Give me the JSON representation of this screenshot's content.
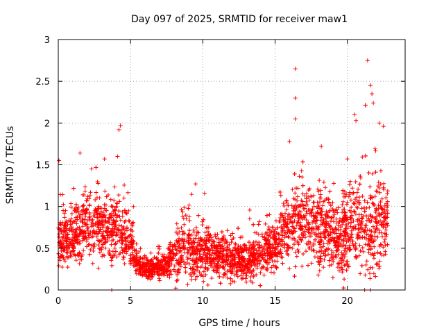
{
  "chart_data": {
    "type": "scatter",
    "title": "Day 097 of 2025, SRMTID for receiver maw1",
    "xlabel": "GPS time / hours",
    "ylabel": "SRMTID / TECUs",
    "xlim": [
      0,
      24
    ],
    "ylim": [
      0,
      3
    ],
    "xticks": [
      0,
      5,
      10,
      15,
      20
    ],
    "yticks": [
      0,
      0.5,
      1,
      1.5,
      2,
      2.5,
      3
    ],
    "xtick_labels": [
      "0",
      "5",
      "10",
      "15",
      "20"
    ],
    "ytick_labels": [
      "0",
      "0.5",
      "1",
      "1.5",
      "2",
      "2.5",
      "3"
    ],
    "grid": true,
    "marker": "+",
    "color": "#ff0000",
    "n_points": 3600,
    "profile": [
      {
        "hour": 0.0,
        "mean": 0.6,
        "spread": 0.25
      },
      {
        "hour": 1.0,
        "mean": 0.65,
        "spread": 0.3
      },
      {
        "hour": 2.0,
        "mean": 0.8,
        "spread": 0.3
      },
      {
        "hour": 3.0,
        "mean": 0.75,
        "spread": 0.3
      },
      {
        "hour": 4.0,
        "mean": 0.75,
        "spread": 0.35
      },
      {
        "hour": 5.0,
        "mean": 0.6,
        "spread": 0.25
      },
      {
        "hour": 5.5,
        "mean": 0.3,
        "spread": 0.1
      },
      {
        "hour": 6.5,
        "mean": 0.25,
        "spread": 0.1
      },
      {
        "hour": 7.5,
        "mean": 0.3,
        "spread": 0.12
      },
      {
        "hour": 8.5,
        "mean": 0.5,
        "spread": 0.3
      },
      {
        "hour": 9.5,
        "mean": 0.45,
        "spread": 0.3
      },
      {
        "hour": 10.5,
        "mean": 0.45,
        "spread": 0.25
      },
      {
        "hour": 12.0,
        "mean": 0.35,
        "spread": 0.2
      },
      {
        "hour": 13.5,
        "mean": 0.4,
        "spread": 0.2
      },
      {
        "hour": 15.0,
        "mean": 0.55,
        "spread": 0.25
      },
      {
        "hour": 16.5,
        "mean": 0.8,
        "spread": 0.4
      },
      {
        "hour": 18.0,
        "mean": 0.8,
        "spread": 0.4
      },
      {
        "hour": 19.5,
        "mean": 0.55,
        "spread": 0.35
      },
      {
        "hour": 20.5,
        "mean": 0.9,
        "spread": 0.5
      },
      {
        "hour": 21.5,
        "mean": 0.7,
        "spread": 0.55
      },
      {
        "hour": 22.5,
        "mean": 0.8,
        "spread": 0.45
      },
      {
        "hour": 22.8,
        "mean": 0.8,
        "spread": 0.4
      }
    ],
    "peaks": [
      {
        "x": 0.05,
        "y": 1.55
      },
      {
        "x": 1.5,
        "y": 1.64
      },
      {
        "x": 2.3,
        "y": 1.45
      },
      {
        "x": 3.2,
        "y": 1.57
      },
      {
        "x": 4.3,
        "y": 1.97
      },
      {
        "x": 4.2,
        "y": 1.92
      },
      {
        "x": 4.1,
        "y": 1.6
      },
      {
        "x": 9.5,
        "y": 1.27
      },
      {
        "x": 16.4,
        "y": 2.65
      },
      {
        "x": 16.4,
        "y": 2.3
      },
      {
        "x": 16.4,
        "y": 2.05
      },
      {
        "x": 16.0,
        "y": 1.78
      },
      {
        "x": 18.2,
        "y": 1.72
      },
      {
        "x": 20.5,
        "y": 2.1
      },
      {
        "x": 20.6,
        "y": 2.03
      },
      {
        "x": 21.4,
        "y": 2.75
      },
      {
        "x": 21.6,
        "y": 2.45
      },
      {
        "x": 21.7,
        "y": 2.35
      },
      {
        "x": 21.8,
        "y": 2.24
      },
      {
        "x": 22.2,
        "y": 2.0
      },
      {
        "x": 22.5,
        "y": 1.96
      },
      {
        "x": 3.7,
        "y": 0.0
      },
      {
        "x": 21.2,
        "y": 0.0
      },
      {
        "x": 21.6,
        "y": 0.0
      }
    ]
  }
}
